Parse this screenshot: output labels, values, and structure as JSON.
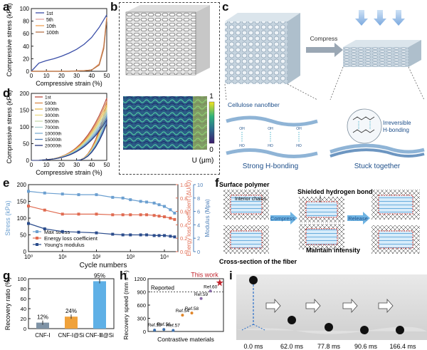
{
  "panels": {
    "a": "a",
    "b": "b",
    "c": "c",
    "d": "d",
    "e": "e",
    "f": "f",
    "g": "g",
    "h": "h",
    "i": "i"
  },
  "chart_data": [
    {
      "id": "a",
      "type": "line",
      "xlabel": "Compressive strain (%)",
      "ylabel": "Compressive stress (kPa)",
      "xlim": [
        0,
        50
      ],
      "ylim": [
        0,
        100
      ],
      "xticks": [
        0,
        10,
        20,
        30,
        40,
        50
      ],
      "yticks": [
        0,
        20,
        40,
        60,
        80,
        100
      ],
      "series": [
        {
          "name": "1st",
          "color": "#3b4fa8",
          "x": [
            0,
            5,
            10,
            15,
            20,
            25,
            30,
            35,
            40,
            45,
            48,
            50
          ],
          "y": [
            0,
            13,
            17,
            20,
            24,
            29,
            35,
            43,
            54,
            70,
            82,
            90
          ]
        },
        {
          "name": "5th",
          "color": "#e4a3a0",
          "x": [
            0,
            5,
            10,
            15,
            20,
            25,
            30,
            35,
            40,
            45,
            48,
            50
          ],
          "y": [
            0,
            0,
            0,
            0,
            0,
            0,
            0.5,
            1,
            2,
            12,
            40,
            86
          ]
        },
        {
          "name": "10th",
          "color": "#f0a254",
          "x": [
            0,
            5,
            10,
            15,
            20,
            25,
            30,
            35,
            40,
            45,
            48,
            50
          ],
          "y": [
            0,
            0,
            0,
            0,
            0,
            0,
            0.5,
            1,
            2,
            11,
            38,
            85
          ]
        },
        {
          "name": "100th",
          "color": "#b77448",
          "x": [
            0,
            5,
            10,
            15,
            20,
            25,
            30,
            35,
            40,
            45,
            48,
            50
          ],
          "y": [
            0,
            0,
            0,
            0,
            0,
            0,
            0.5,
            1,
            2,
            10,
            36,
            84
          ]
        }
      ]
    },
    {
      "id": "d",
      "type": "line",
      "xlabel": "Compressive strain (%)",
      "ylabel": "Compressive stress (kPa)",
      "xlim": [
        0,
        50
      ],
      "ylim": [
        0,
        200
      ],
      "xticks": [
        0,
        10,
        20,
        30,
        40,
        50
      ],
      "yticks": [
        0,
        50,
        100,
        150,
        200
      ],
      "series": [
        {
          "name": "1st",
          "color": "#b84a3d",
          "peak": 180
        },
        {
          "name": "500th",
          "color": "#d8894a",
          "peak": 170
        },
        {
          "name": "1000th",
          "color": "#e8b84f",
          "peak": 160
        },
        {
          "name": "3000th",
          "color": "#ead985",
          "peak": 152
        },
        {
          "name": "5000th",
          "color": "#c8dcae",
          "peak": 145
        },
        {
          "name": "7000th",
          "color": "#a6cfd0",
          "peak": 138
        },
        {
          "name": "10000th",
          "color": "#7eaed2",
          "peak": 130
        },
        {
          "name": "15000th",
          "color": "#4e7db8",
          "peak": 122
        },
        {
          "name": "20000th",
          "color": "#24337a",
          "peak": 115
        }
      ]
    },
    {
      "id": "e",
      "type": "line",
      "xlabel": "Cycle numbers",
      "ylabel": "Stress (kPa)",
      "ylabel2": "Energy loss coefficient (ΔU/U)",
      "ylabel3": "Modulus (Mpa)",
      "x": [
        1,
        3,
        10,
        30,
        100,
        300,
        600,
        1000,
        2000,
        3000,
        5000,
        7000,
        10000,
        15000,
        20000
      ],
      "ylim": [
        0,
        200
      ],
      "ylim2": [
        0.0,
        1.0
      ],
      "ylim3": [
        0,
        10
      ],
      "yticks": [
        0,
        50,
        100,
        150,
        200
      ],
      "yticks2": [
        "0.0",
        "0.2",
        "0.4",
        "0.6",
        "0.8",
        "1.0"
      ],
      "yticks3": [
        0,
        2,
        4,
        6,
        8,
        10
      ],
      "xtick_labels": [
        "10⁰",
        "10¹",
        "10²",
        "10³",
        "10⁴"
      ],
      "series": [
        {
          "name": "Max stress",
          "color": "#6b9fd0",
          "axis": 1,
          "values": [
            180,
            175,
            172,
            170,
            170,
            162,
            160,
            155,
            150,
            148,
            145,
            140,
            135,
            125,
            115
          ]
        },
        {
          "name": "Energy loss coefficient",
          "color": "#e06a50",
          "axis": 2,
          "values": [
            0.68,
            0.62,
            0.56,
            0.56,
            0.56,
            0.55,
            0.55,
            0.55,
            0.55,
            0.55,
            0.54,
            0.53,
            0.52,
            0.5,
            0.48
          ]
        },
        {
          "name": "Young's modulus",
          "color": "#2b4c8c",
          "axis": 3,
          "values": [
            4.2,
            3.4,
            3.0,
            2.9,
            2.8,
            2.6,
            2.5,
            2.5,
            2.5,
            2.5,
            2.4,
            2.4,
            2.4,
            2.3,
            2.2
          ]
        }
      ]
    },
    {
      "id": "g",
      "type": "bar",
      "ylabel": "Recovery ratio (%)",
      "ylim": [
        0,
        100
      ],
      "yticks": [
        0,
        20,
        40,
        60,
        80,
        100
      ],
      "categories": [
        "CNF-Ⅰ",
        "CNF-Ⅰ@Si",
        "CNF-Ⅲ@Si"
      ],
      "values": [
        12,
        24,
        95
      ],
      "labels": [
        "12%",
        "24%",
        "95%"
      ],
      "colors": [
        "#7f93a6",
        "#f0a23b",
        "#5fb0e6"
      ]
    },
    {
      "id": "h",
      "type": "scatter",
      "xlabel": "Contrastive materials",
      "ylabel": "Recovery speed (mm s⁻¹)",
      "ylim": [
        0,
        1200
      ],
      "yticks": [
        0,
        300,
        600,
        900,
        1200
      ],
      "reference_line": {
        "y": 900,
        "label": "Reported"
      },
      "points": [
        {
          "name": "Ref.55",
          "x": 1,
          "y": 30,
          "color": "#3a6fb0"
        },
        {
          "name": "Ref.56",
          "x": 2,
          "y": 45,
          "color": "#3a6fb0"
        },
        {
          "name": "Ref.57",
          "x": 3,
          "y": 25,
          "color": "#3a6fb0"
        },
        {
          "name": "Ref.54",
          "x": 4,
          "y": 370,
          "color": "#e0862a"
        },
        {
          "name": "Ref.58",
          "x": 5,
          "y": 420,
          "color": "#e0862a"
        },
        {
          "name": "Ref.59",
          "x": 6,
          "y": 750,
          "color": "#8a6ba8"
        },
        {
          "name": "Ref.60",
          "x": 7,
          "y": 920,
          "color": "#8a6ba8"
        },
        {
          "name": "This work",
          "x": 8,
          "y": 1110,
          "color": "#c0242d"
        }
      ]
    }
  ],
  "panel_b": {
    "colorbar_max": "1",
    "colorbar_min": "0",
    "colorbar_label": "U (μm)"
  },
  "panel_c": {
    "compress_label": "Compress",
    "left_caption": "Cellulose nanofiber",
    "left_bond": "Strong H-bonding",
    "right_caption": "Irreversible\nH-bonding",
    "right_bond": "Stuck together",
    "oh_labels": [
      "OH",
      "HO",
      "OH",
      "HO",
      "OH",
      "HO"
    ]
  },
  "panel_f": {
    "surface_polymer": "Surface polymer",
    "interior_chains": "Interior chains",
    "shielded": "Shielded hydrogen bond",
    "compress": "Compress",
    "release": "Release",
    "maintain": "Maintain intensity",
    "cross_section": "Cross-section of the fiber"
  },
  "panel_i": {
    "times": [
      "0.0 ms",
      "62.0 ms",
      "77.8 ms",
      "90.6 ms",
      "166.4 ms"
    ]
  }
}
